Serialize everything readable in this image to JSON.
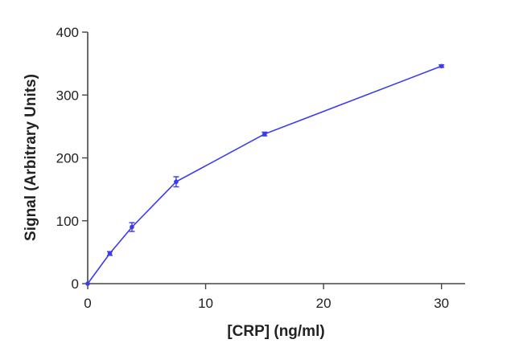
{
  "chart_data": {
    "type": "line",
    "title": "",
    "xlabel": "[CRP] (ng/ml)",
    "ylabel": "Signal (Arbitrary Units)",
    "xlim": [
      0,
      32
    ],
    "ylim": [
      0,
      400
    ],
    "x_ticks": [
      0,
      10,
      20,
      30
    ],
    "y_ticks": [
      0,
      100,
      200,
      300,
      400
    ],
    "grid": false,
    "legend": "none",
    "series": [
      {
        "color": "#3b3bf0",
        "x": [
          0,
          1.875,
          3.75,
          7.5,
          15,
          30
        ],
        "y": [
          0,
          48,
          90,
          162,
          238,
          346
        ],
        "error": [
          0,
          3,
          7,
          8,
          3,
          2
        ]
      }
    ]
  }
}
